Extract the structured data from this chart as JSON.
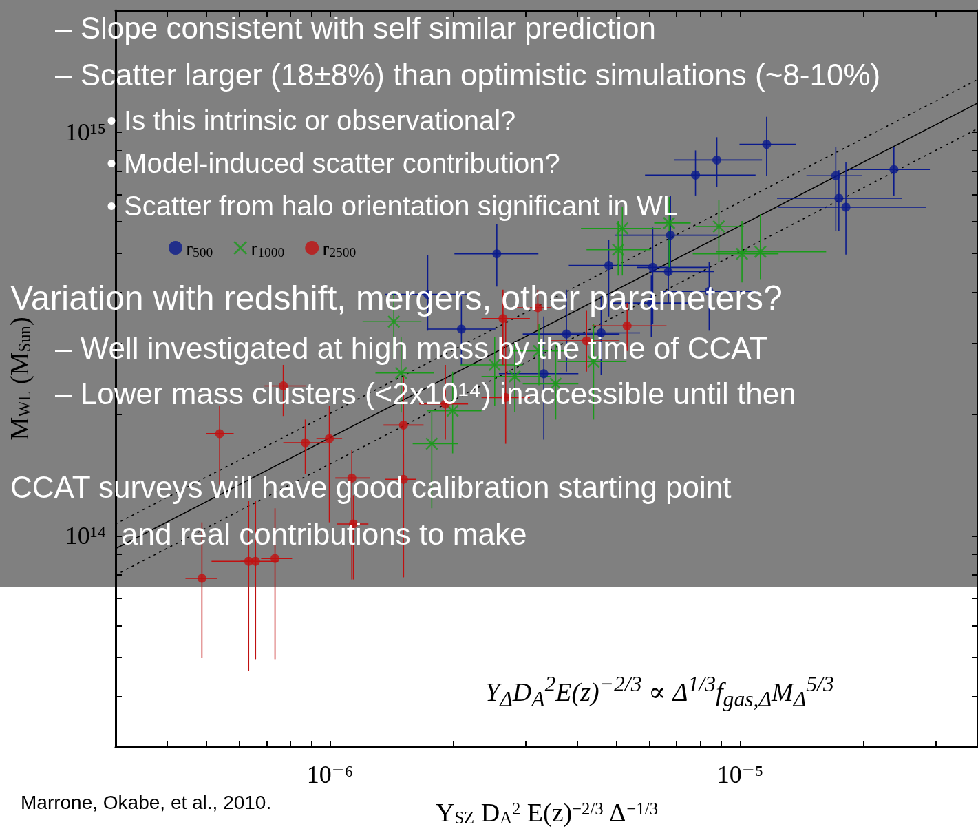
{
  "chart_data": {
    "type": "scatter",
    "xlabel": "Y$_{SZ}$ D$_{A}$$^{2}$ E(z)$^{−2/3}$ Δ$^{−1/3}$",
    "ylabel": "M$_{WL}$ (M$_{Sun}$)",
    "log": "xy",
    "grid": false,
    "legend": "top left",
    "xlim": [
      3e-07,
      3.8e-05
    ],
    "xticks": [
      {
        "value": 4e-07,
        "label": null
      },
      {
        "value": 5e-07,
        "label": null
      },
      {
        "value": 6e-07,
        "label": null
      },
      {
        "value": 7e-07,
        "label": null
      },
      {
        "value": 8e-07,
        "label": null
      },
      {
        "value": 9e-07,
        "label": null
      },
      {
        "value": 1e-06,
        "label": "10⁻⁶"
      },
      {
        "value": 2e-06,
        "label": null
      },
      {
        "value": 3e-06,
        "label": null
      },
      {
        "value": 4e-06,
        "label": null
      },
      {
        "value": 5e-06,
        "label": null
      },
      {
        "value": 6e-06,
        "label": null
      },
      {
        "value": 7e-06,
        "label": null
      },
      {
        "value": 8e-06,
        "label": null
      },
      {
        "value": 9e-06,
        "label": null
      },
      {
        "value": 1e-05,
        "label": "10⁻⁵"
      },
      {
        "value": 2e-05,
        "label": null
      },
      {
        "value": 3e-05,
        "label": null
      }
    ],
    "ylim": [
      30000000000000.0,
      2000000000000000.0
    ],
    "yticks": [
      {
        "value": 40000000000000.0,
        "label": null
      },
      {
        "value": 50000000000000.0,
        "label": null
      },
      {
        "value": 60000000000000.0,
        "label": null
      },
      {
        "value": 70000000000000.0,
        "label": null
      },
      {
        "value": 80000000000000.0,
        "label": null
      },
      {
        "value": 90000000000000.0,
        "label": null
      },
      {
        "value": 100000000000000.0,
        "label": "10¹⁴"
      },
      {
        "value": 200000000000000.0,
        "label": null
      },
      {
        "value": 300000000000000.0,
        "label": null
      },
      {
        "value": 400000000000000.0,
        "label": null
      },
      {
        "value": 500000000000000.0,
        "label": null
      },
      {
        "value": 600000000000000.0,
        "label": null
      },
      {
        "value": 700000000000000.0,
        "label": null
      },
      {
        "value": 800000000000000.0,
        "label": null
      },
      {
        "value": 900000000000000.0,
        "label": null
      },
      {
        "value": 1000000000000000.0,
        "label": "10¹⁵"
      }
    ],
    "series": [
      {
        "name": "r$_{500}$",
        "color": "#0a1a8c",
        "marker": "circle",
        "x": [
          1.16e-05,
          8.77e-06,
          7.78e-06,
          2.37e-05,
          1.71e-05,
          1.74e-05,
          1.81e-05,
          2.55e-06,
          6.76e-06,
          4.78e-06,
          6.12e-06,
          6.68e-06,
          1.73e-06,
          2.09e-06,
          3.77e-06,
          4.58e-06,
          3.32e-06,
          6.07e-06,
          8.4e-06
        ],
        "values": [
          932000000000000.0,
          852000000000000.0,
          782000000000000.0,
          807000000000000.0,
          779000000000000.0,
          685000000000000.0,
          651000000000000.0,
          499000000000000.0,
          555000000000000.0,
          467000000000000.0,
          462000000000000.0,
          451000000000000.0,
          396000000000000.0,
          325000000000000.0,
          316000000000000.0,
          318000000000000.0,
          252000000000000.0,
          377000000000000.0,
          403000000000000.0
        ],
        "xerrors": [
          [
            9.96e-06,
            1.37e-05
          ],
          [
            6.9e-06,
            1.13e-05
          ],
          [
            5.86e-06,
            1.09e-05
          ],
          [
            1.84e-05,
            2.9e-05
          ],
          [
            1.45e-05,
            1.98e-05
          ],
          [
            1.23e-05,
            2.48e-05
          ],
          [
            1.24e-05,
            2.84e-05
          ],
          [
            2.01e-06,
            3.22e-06
          ],
          [
            4.94e-06,
            8.83e-06
          ],
          [
            3.82e-06,
            6.07e-06
          ],
          [
            5.6e-06,
            8.37e-06
          ],
          [
            6e-06,
            8.63e-06
          ],
          [
            1.36e-06,
            2.17e-06
          ],
          [
            1.72e-06,
            2.53e-06
          ],
          [
            2.95e-06,
            5.08e-06
          ],
          [
            3.73e-06,
            5.7e-06
          ],
          [
            2.58e-06,
            4.03e-06
          ],
          [
            4.89e-06,
            7.48e-06
          ],
          [
            6.41e-06,
            1.1e-05
          ]
        ],
        "errors": [
          [
            780000000000000.0,
            1090000000000000.0
          ],
          [
            730000000000000.0,
            970000000000000.0
          ],
          [
            696000000000000.0,
            900000000000000.0
          ],
          [
            696000000000000.0,
            918000000000000.0
          ],
          [
            568000000000000.0,
            918000000000000.0
          ],
          [
            568000000000000.0,
            804000000000000.0
          ],
          [
            497000000000000.0,
            842000000000000.0
          ],
          [
            414000000000000.0,
            590000000000000.0
          ],
          [
            444000000000000.0,
            696000000000000.0
          ],
          [
            349000000000000.0,
            540000000000000.0
          ],
          [
            335000000000000.0,
            580000000000000.0
          ],
          [
            377000000000000.0,
            546000000000000.0
          ],
          [
            322000000000000.0,
            495000000000000.0
          ],
          [
            265000000000000.0,
            392000000000000.0
          ],
          [
            255000000000000.0,
            407000000000000.0
          ],
          [
            250000000000000.0,
            392000000000000.0
          ],
          [
            173000000000000.0,
            349000000000000.0
          ],
          [
            310000000000000.0,
            441000000000000.0
          ],
          [
            322000000000000.0,
            477000000000000.0
          ]
        ]
      },
      {
        "name": "r$_{1000}$",
        "color": "#1a9a1a",
        "marker": "cross",
        "x": [
          5.16e-06,
          6.71e-06,
          8.87e-06,
          5.04e-06,
          1.01e-05,
          1.12e-05,
          1.43e-06,
          1.49e-06,
          3.23e-06,
          2.52e-06,
          2.82e-06,
          3.55e-06,
          4.39e-06,
          1.99e-06,
          1.77e-06
        ],
        "values": [
          577000000000000.0,
          595000000000000.0,
          583000000000000.0,
          511000000000000.0,
          499000000000000.0,
          505000000000000.0,
          339000000000000.0,
          253000000000000.0,
          287000000000000.0,
          265000000000000.0,
          248000000000000.0,
          238000000000000.0,
          270000000000000.0,
          204000000000000.0,
          169000000000000.0
        ],
        "xerrors": [
          [
            4.09e-06,
            6.41e-06
          ],
          [
            6.17e-06,
            7.57e-06
          ],
          [
            7.78e-06,
            1.02e-05
          ],
          [
            4.22e-06,
            6.05e-06
          ],
          [
            7.66e-06,
            1.24e-05
          ],
          [
            8.73e-06,
            1.62e-05
          ],
          [
            1.2e-06,
            1.67e-06
          ],
          [
            1.29e-06,
            1.79e-06
          ],
          [
            2.74e-06,
            3.87e-06
          ],
          [
            2.08e-06,
            2.95e-06
          ],
          [
            2.34e-06,
            3.45e-06
          ],
          [
            2.95e-06,
            4.03e-06
          ],
          [
            3.59e-06,
            5.28e-06
          ],
          [
            1.72e-06,
            2.34e-06
          ],
          [
            1.59e-06,
            2.05e-06
          ]
        ],
        "errors": [
          [
            441000000000000.0,
            651000000000000.0
          ],
          [
            458000000000000.0,
            690000000000000.0
          ],
          [
            477000000000000.0,
            677000000000000.0
          ],
          [
            441000000000000.0,
            602000000000000.0
          ],
          [
            424000000000000.0,
            602000000000000.0
          ],
          [
            432000000000000.0,
            626000000000000.0
          ],
          [
            276000000000000.0,
            400000000000000.0
          ],
          [
            202000000000000.0,
            310000000000000.0
          ],
          [
            236000000000000.0,
            335000000000000.0
          ],
          [
            210000000000000.0,
            310000000000000.0
          ],
          [
            202000000000000.0,
            298000000000000.0
          ],
          [
            194000000000000.0,
            298000000000000.0
          ],
          [
            194000000000000.0,
            335000000000000.0
          ],
          [
            160000000000000.0,
            255000000000000.0
          ],
          [
            117000000000000.0,
            202000000000000.0
          ]
        ]
      },
      {
        "name": "r$_{2500}$",
        "color": "#c01010",
        "marker": "circle",
        "x": [
          7.69e-07,
          5.38e-07,
          8.7e-07,
          9.96e-07,
          1.51e-06,
          1.13e-06,
          1.51e-06,
          1.14e-06,
          4.87e-07,
          6.33e-07,
          6.58e-07,
          7.34e-07,
          2.64e-06,
          3.21e-06,
          4.22e-06,
          5.3e-06,
          2.68e-06,
          1.91e-06
        ],
        "values": [
          235000000000000.0,
          179000000000000.0,
          170000000000000.0,
          174000000000000.0,
          188000000000000.0,
          139000000000000.0,
          138000000000000.0,
          107000000000000.0,
          78500000000000.0,
          86500000000000.0,
          86500000000000.0,
          87900000000000.0,
          345000000000000.0,
          367000000000000.0,
          304000000000000.0,
          331000000000000.0,
          220000000000000.0,
          212000000000000.0
        ],
        "xerrors": [
          [
            6.92e-07,
            8.73e-07
          ],
          [
            4.98e-07,
            5.82e-07
          ],
          [
            7.69e-07,
            9.8e-07
          ],
          [
            9.26e-07,
            1.07e-06
          ],
          [
            1.35e-06,
            1.69e-06
          ],
          [
            1.03e-06,
            1.25e-06
          ],
          [
            1.36e-06,
            1.62e-06
          ],
          [
            1.04e-06,
            1.24e-06
          ],
          [
            4.44e-07,
            5.3e-07
          ],
          [
            5.14e-07,
            6.58e-07
          ],
          [
            6.05e-07,
            7.48e-07
          ],
          [
            6.79e-07,
            8.08e-07
          ],
          [
            2.34e-06,
            3.07e-06
          ],
          [
            2.84e-06,
            3.45e-06
          ],
          [
            3.45e-06,
            5.08e-06
          ],
          [
            4.35e-06,
            6.61e-06
          ],
          [
            2.34e-06,
            3.07e-06
          ],
          [
            1.65e-06,
            2.17e-06
          ]
        ],
        "errors": [
          [
            198000000000000.0,
            265000000000000.0
          ],
          [
            134000000000000.0,
            210000000000000.0
          ],
          [
            142000000000000.0,
            194000000000000.0
          ],
          [
            108000000000000.0,
            210000000000000.0
          ],
          [
            79000000000000.0,
            250000000000000.0
          ],
          [
            78000000000000.0,
            163000000000000.0
          ],
          [
            79000000000000.0,
            160000000000000.0
          ],
          [
            78000000000000.0,
            126000000000000.0
          ],
          [
            49900000000000.0,
            108000000000000.0
          ],
          [
            46200000000000.0,
            122000000000000.0
          ],
          [
            49500000000000.0,
            122000000000000.0
          ],
          [
            49500000000000.0,
            117000000000000.0
          ],
          [
            265000000000000.0,
            407000000000000.0
          ],
          [
            322000000000000.0,
            407000000000000.0
          ],
          [
            255000000000000.0,
            362000000000000.0
          ],
          [
            287000000000000.0,
            377000000000000.0
          ],
          [
            169000000000000.0,
            342000000000000.0
          ],
          [
            173000000000000.0,
            265000000000000.0
          ]
        ]
      },
      {
        "type": "line",
        "color": "#000000",
        "marker": "none",
        "line_style": "solid",
        "x": [
          3e-07,
          3.8e-05
        ],
        "values": [
          93000000000000.0,
          1180000000000000.0
        ]
      },
      {
        "type": "line",
        "color": "#000000",
        "marker": "none",
        "line_style": "dotted",
        "x": [
          3e-07,
          3.8e-05
        ],
        "values": [
          107000000000000.0,
          1350000000000000.0
        ]
      },
      {
        "type": "line",
        "color": "#000000",
        "marker": "none",
        "line_style": "dotted",
        "x": [
          3e-07,
          3.8e-05
        ],
        "values": [
          80000000000000.0,
          1020000000000000.0
        ]
      }
    ],
    "annotations": [
      "– Slope consistent with self similar prediction",
      "– Scatter larger (18±8%) than optimistic simulations (~8-10%)",
      "• Is this intrinsic or observational?",
      "• Model-induced scatter contribution?",
      "• Scatter from halo orientation significant in WL",
      "Variation with redshift, mergers, other parameters?",
      "– Well investigated at high mass by the time of CCAT",
      "– Lower mass clusters (<2x10¹⁴) inaccessible until then",
      "CCAT surveys will have good calibration starting point",
      "and real contributions to make",
      "Y$_{Δ}$D$_{A}$$^{2}$E(z)$^{−2/3}$ ∝ Δ$^{1/3}$f$_{gas,Δ}$M$_{Δ}$$^{5/3}$",
      "Marrone, Okabe, et al., 2010."
    ]
  }
}
